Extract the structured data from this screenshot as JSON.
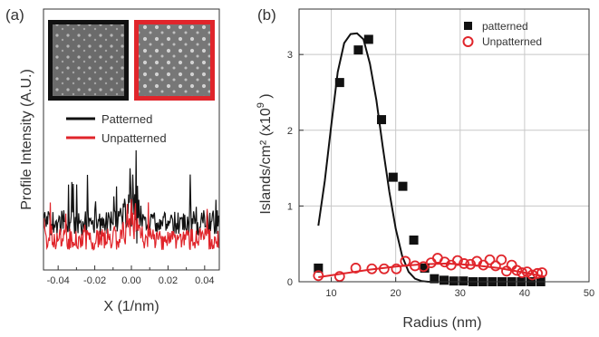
{
  "chart_data": [
    {
      "panel": "(a)",
      "type": "line",
      "xlabel": "X (1/nm)",
      "ylabel": "Profile Intensity (A.U.)",
      "xlim": [
        -0.048,
        0.048
      ],
      "xticks": [
        -0.04,
        -0.02,
        0.0,
        0.02,
        0.04
      ],
      "xtick_labels": [
        "-0.04",
        "-0.02",
        "0.00",
        "0.02",
        "0.04"
      ],
      "yticks_shown": false,
      "legend": {
        "placement": "center",
        "entries": [
          "Patterned",
          "Unpatterned"
        ]
      },
      "inset_images": [
        {
          "name": "patterned",
          "frame_color": "#111111"
        },
        {
          "name": "unpatterned",
          "frame_color": "#e0252b"
        }
      ],
      "series": [
        {
          "name": "Patterned",
          "color": "#111111"
        },
        {
          "name": "Unpatterned",
          "color": "#e0252b"
        }
      ]
    },
    {
      "panel": "(b)",
      "type": "scatter",
      "xlabel": "Radius (nm)",
      "ylabel": "Islands/cm² (x10⁹ )",
      "ylabel_main": "Islands/cm² (x10",
      "ylabel_exp": "9",
      "ylabel_close": " )",
      "xlim": [
        5,
        50
      ],
      "ylim": [
        0,
        3.6
      ],
      "xticks": [
        10,
        20,
        30,
        40,
        50
      ],
      "yticks": [
        0,
        1,
        2,
        3
      ],
      "grid": true,
      "legend": {
        "placement": "top-right",
        "entries": [
          "patterned",
          "Unpatterned"
        ]
      },
      "series": [
        {
          "name": "patterned",
          "marker": "filled-square",
          "color": "#111111",
          "x": [
            8,
            11.3,
            14.2,
            15.8,
            17.8,
            19.6,
            21.1,
            22.8,
            24.5,
            26,
            27.5,
            29,
            30.5,
            32,
            33.5,
            35,
            36.5,
            38,
            39.5,
            41,
            42.5
          ],
          "y": [
            0.18,
            2.63,
            3.06,
            3.2,
            2.14,
            1.38,
            1.26,
            0.55,
            0.18,
            0.04,
            0.02,
            0.01,
            0.01,
            0.0,
            0.0,
            0.0,
            0.0,
            0.0,
            0.0,
            0.0,
            0.0
          ],
          "fit_x": [
            8,
            9,
            10,
            11,
            12,
            13,
            14,
            15,
            16,
            17,
            18,
            19,
            20,
            21,
            22,
            23,
            24,
            25,
            26
          ],
          "fit_y": [
            0.74,
            1.33,
            2.07,
            2.77,
            3.15,
            3.27,
            3.28,
            3.2,
            2.88,
            2.4,
            1.78,
            1.19,
            0.7,
            0.34,
            0.13,
            0.04,
            0.01,
            0.0,
            0.0
          ]
        },
        {
          "name": "Unpatterned",
          "marker": "open-circle",
          "color": "#e0252b",
          "x": [
            8,
            11.3,
            13.8,
            16.3,
            18.2,
            20.1,
            21.5,
            23.0,
            24.3,
            25.5,
            26.5,
            27.6,
            28.6,
            29.6,
            30.6,
            31.6,
            32.6,
            33.6,
            34.6,
            35.5,
            36.4,
            37.2,
            38.0,
            38.8,
            39.6,
            40.4,
            41.2,
            42.0,
            42.7
          ],
          "y": [
            0.08,
            0.07,
            0.18,
            0.17,
            0.17,
            0.17,
            0.27,
            0.21,
            0.2,
            0.25,
            0.31,
            0.26,
            0.22,
            0.28,
            0.24,
            0.23,
            0.27,
            0.22,
            0.29,
            0.21,
            0.29,
            0.14,
            0.22,
            0.15,
            0.12,
            0.13,
            0.09,
            0.11,
            0.12
          ],
          "fit_x": [
            8,
            12,
            16,
            20,
            24,
            28,
            32,
            36,
            40,
            43
          ],
          "fit_y": [
            0.06,
            0.11,
            0.16,
            0.2,
            0.23,
            0.24,
            0.22,
            0.18,
            0.12,
            0.07
          ]
        }
      ]
    }
  ]
}
